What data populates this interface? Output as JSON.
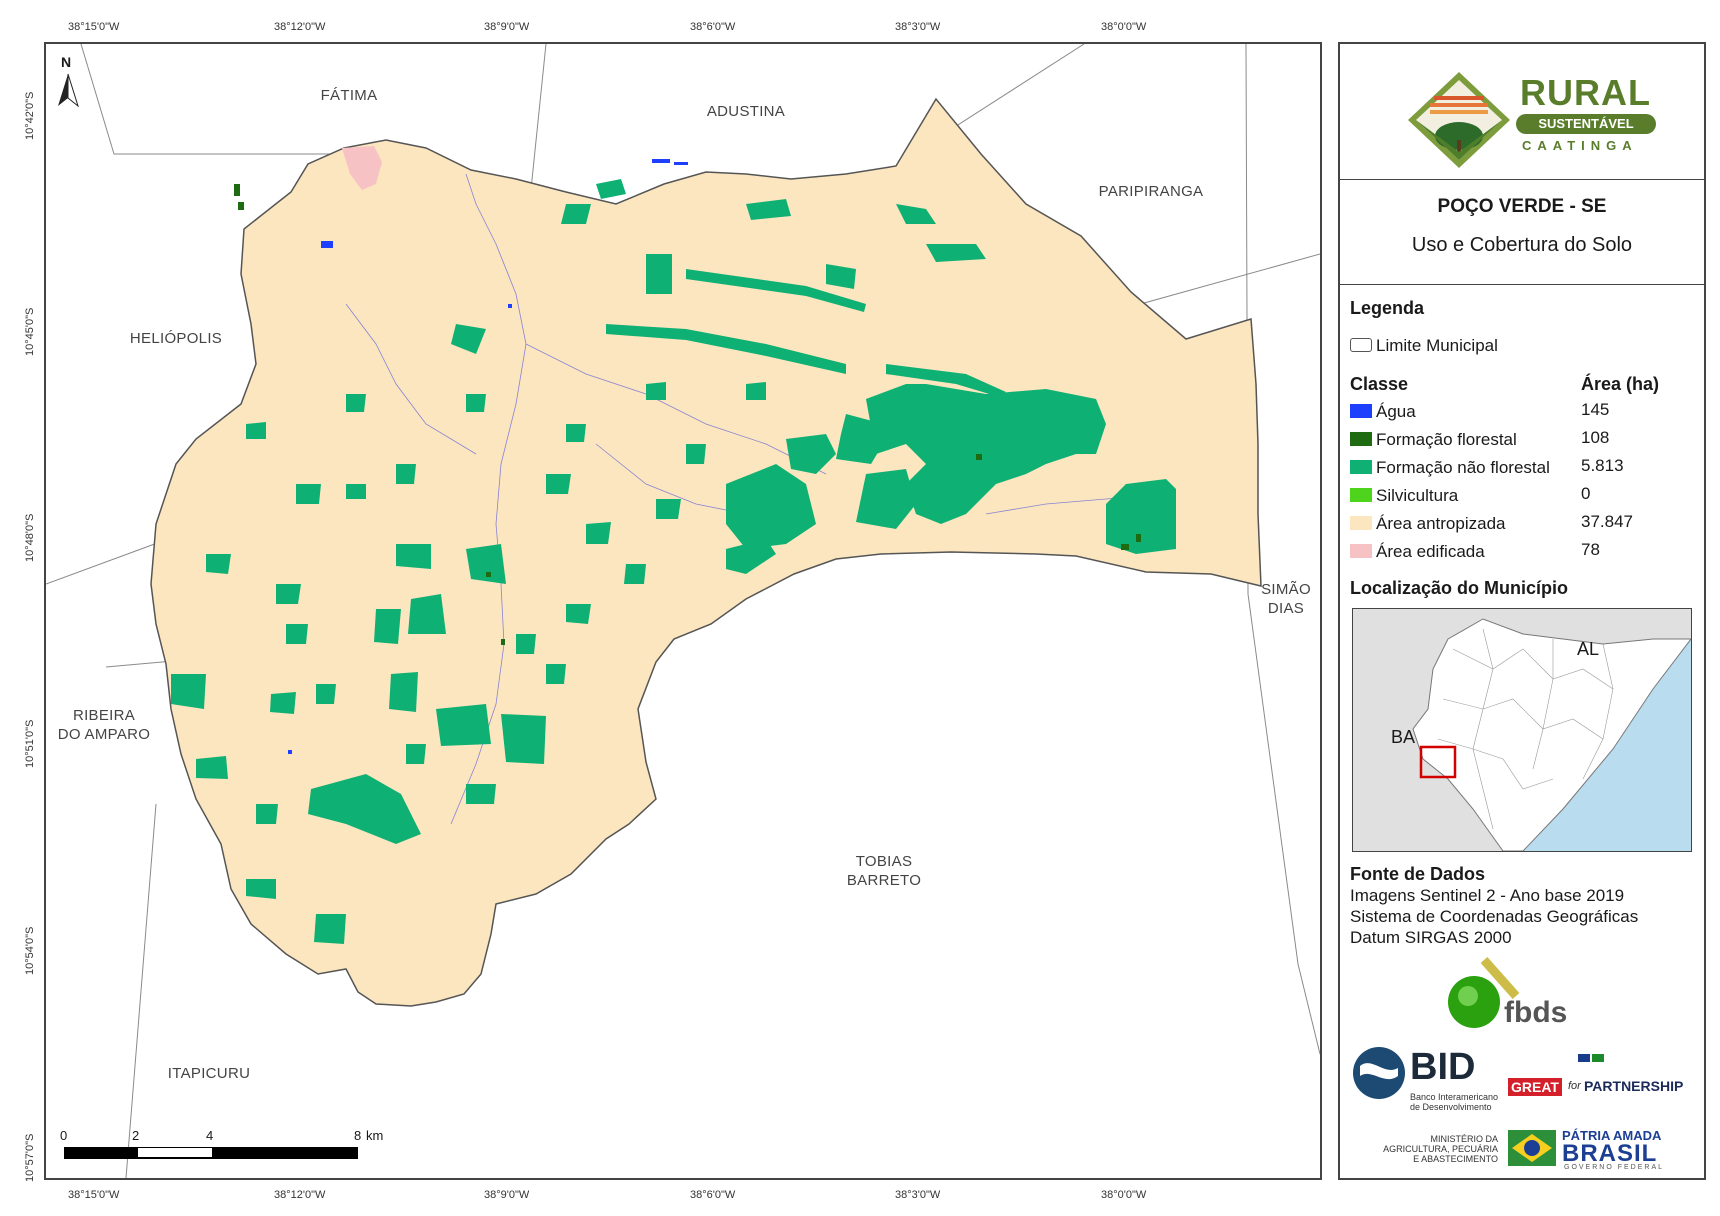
{
  "ticks": {
    "lon": [
      "38°15'0\"W",
      "38°12'0\"W",
      "38°9'0\"W",
      "38°6'0\"W",
      "38°3'0\"W",
      "38°0'0\"W"
    ],
    "lat": [
      "10°42'0\"S",
      "10°45'0\"S",
      "10°48'0\"S",
      "10°51'0\"S",
      "10°54'0\"S",
      "10°57'0\"S"
    ]
  },
  "places": {
    "fatima": "FÁTIMA",
    "adustina": "ADUSTINA",
    "paripiranga": "PARIPIRANGA",
    "heliopolis": "HELIÓPOLIS",
    "ribeira_1": "RIBEIRA",
    "ribeira_2": "DO AMPARO",
    "simao_1": "SIMÃO",
    "simao_2": "DIAS",
    "tobias_1": "TOBIAS",
    "tobias_2": "BARRETO",
    "itapicuru": "ITAPICURU"
  },
  "north_arrow": "N",
  "scale_bar": {
    "labels": [
      "0",
      "2",
      "4",
      "8"
    ],
    "unit": "km"
  },
  "logo": {
    "line1": "RURAL",
    "line2": "SUSTENTÁVEL",
    "line3": "CAATINGA"
  },
  "title": {
    "main": "POÇO VERDE - SE",
    "subtitle": "Uso e Cobertura do Solo"
  },
  "legend": {
    "heading": "Legenda",
    "boundary": "Limite Municipal",
    "class_header": "Classe",
    "area_header": "Área (ha)",
    "classes": [
      {
        "name": "Água",
        "area": "145",
        "color": "#1f3fff"
      },
      {
        "name": "Formação florestal",
        "area": "108",
        "color": "#1f6b12"
      },
      {
        "name": "Formação não florestal",
        "area": "5.813",
        "color": "#0fb073"
      },
      {
        "name": "Silvicultura",
        "area": "0",
        "color": "#4fd41e"
      },
      {
        "name": "Área antropizada",
        "area": "37.847",
        "color": "#fbe6bf"
      },
      {
        "name": "Área edificada",
        "area": "78",
        "color": "#f7c2c4"
      }
    ]
  },
  "location": {
    "heading": "Localização do Município",
    "al": "AL",
    "ba": "BA"
  },
  "sources": {
    "heading": "Fonte de Dados",
    "lines": [
      "Imagens Sentinel 2 - Ano base 2019",
      "Sistema de Coordenadas Geográficas",
      "Datum SIRGAS 2000"
    ]
  },
  "partners": {
    "fbds": "fbds",
    "bid": "BID",
    "bid_sub_1": "Banco Interamericano",
    "bid_sub_2": "de Desenvolvimento",
    "great": "GREAT",
    "for_text": "for",
    "partnership": "PARTNERSHIP",
    "mapa_1": "MINISTÉRIO DA",
    "mapa_2": "AGRICULTURA, PECUÁRIA",
    "mapa_3": "E ABASTECIMENTO",
    "patria": "PÁTRIA AMADA",
    "brasil": "BRASIL",
    "governo": "GOVERNO FEDERAL"
  }
}
